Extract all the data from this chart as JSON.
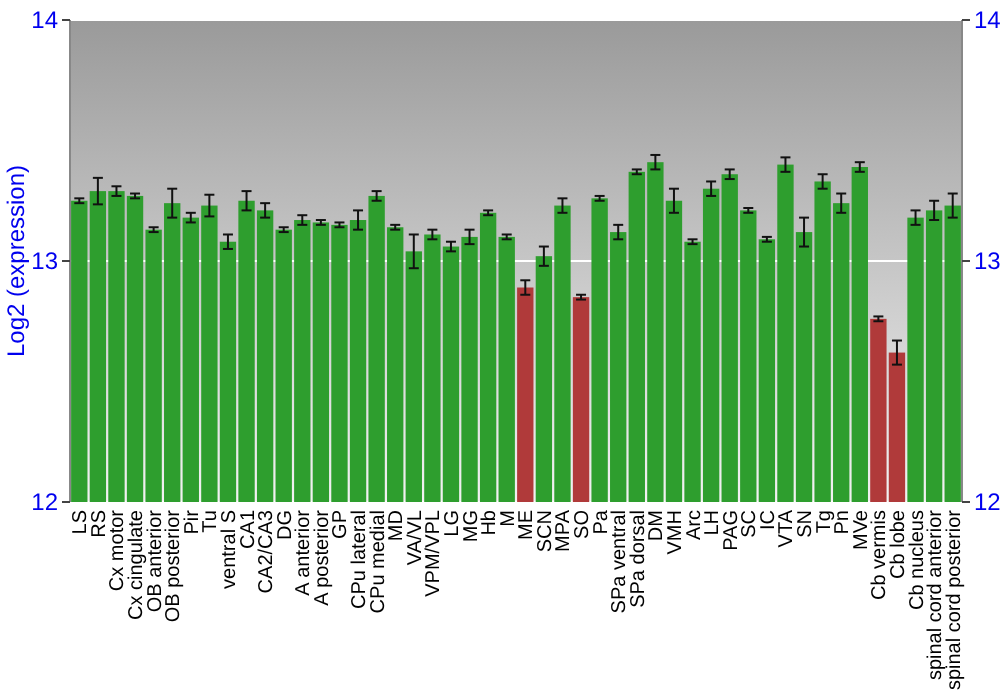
{
  "chart_data": {
    "type": "bar",
    "ylabel": "Log2 (expression)",
    "categories": [
      "LS",
      "RS",
      "Cx motor",
      "Cx cingulate",
      "OB anterior",
      "OB posterior",
      "Pir",
      "Tu",
      "ventral S",
      "CA1",
      "CA2/CA3",
      "DG",
      "A anterior",
      "A posterior",
      "GP",
      "CPu lateral",
      "CPu medial",
      "MD",
      "VA/VL",
      "VPM/VPL",
      "LG",
      "MG",
      "Hb",
      "M",
      "ME",
      "SCN",
      "MPA",
      "SO",
      "Pa",
      "SPa ventral",
      "SPa dorsal",
      "DM",
      "VMH",
      "Arc",
      "LH",
      "PAG",
      "SC",
      "IC",
      "VTA",
      "SN",
      "Tg",
      "Pn",
      "MVe",
      "Cb vermis",
      "Cb lobe",
      "Cb nucleus",
      "spinal cord anterior",
      "spinal cord posterior"
    ],
    "values": [
      13.25,
      13.29,
      13.29,
      13.27,
      13.13,
      13.24,
      13.18,
      13.23,
      13.08,
      13.25,
      13.21,
      13.13,
      13.17,
      13.16,
      13.15,
      13.17,
      13.27,
      13.14,
      13.04,
      13.11,
      13.06,
      13.1,
      13.2,
      13.1,
      12.89,
      13.02,
      13.23,
      12.85,
      13.26,
      13.12,
      13.37,
      13.41,
      13.25,
      13.08,
      13.3,
      13.36,
      13.21,
      13.09,
      13.4,
      13.12,
      13.33,
      13.24,
      13.39,
      12.76,
      12.62,
      13.18,
      13.21,
      13.23
    ],
    "errors": [
      0.01,
      0.055,
      0.02,
      0.01,
      0.01,
      0.06,
      0.02,
      0.045,
      0.03,
      0.04,
      0.03,
      0.01,
      0.02,
      0.01,
      0.01,
      0.04,
      0.02,
      0.01,
      0.07,
      0.02,
      0.02,
      0.03,
      0.01,
      0.01,
      0.03,
      0.04,
      0.03,
      0.01,
      0.01,
      0.03,
      0.01,
      0.03,
      0.05,
      0.01,
      0.03,
      0.02,
      0.01,
      0.01,
      0.03,
      0.06,
      0.03,
      0.04,
      0.02,
      0.01,
      0.05,
      0.03,
      0.04,
      0.05
    ],
    "colors": [
      "#2e9e2e",
      "#2e9e2e",
      "#2e9e2e",
      "#2e9e2e",
      "#2e9e2e",
      "#2e9e2e",
      "#2e9e2e",
      "#2e9e2e",
      "#2e9e2e",
      "#2e9e2e",
      "#2e9e2e",
      "#2e9e2e",
      "#2e9e2e",
      "#2e9e2e",
      "#2e9e2e",
      "#2e9e2e",
      "#2e9e2e",
      "#2e9e2e",
      "#2e9e2e",
      "#2e9e2e",
      "#2e9e2e",
      "#2e9e2e",
      "#2e9e2e",
      "#2e9e2e",
      "#b03a3a",
      "#2e9e2e",
      "#2e9e2e",
      "#b03a3a",
      "#2e9e2e",
      "#2e9e2e",
      "#2e9e2e",
      "#2e9e2e",
      "#2e9e2e",
      "#2e9e2e",
      "#2e9e2e",
      "#2e9e2e",
      "#2e9e2e",
      "#2e9e2e",
      "#2e9e2e",
      "#2e9e2e",
      "#2e9e2e",
      "#2e9e2e",
      "#2e9e2e",
      "#b03a3a",
      "#b03a3a",
      "#2e9e2e",
      "#2e9e2e",
      "#2e9e2e"
    ],
    "ylim": [
      12,
      14
    ],
    "yticks": [
      12,
      13,
      14
    ],
    "y2lim": [
      12,
      14
    ],
    "y2ticks": [
      12,
      13,
      14
    ],
    "grid": "y"
  }
}
